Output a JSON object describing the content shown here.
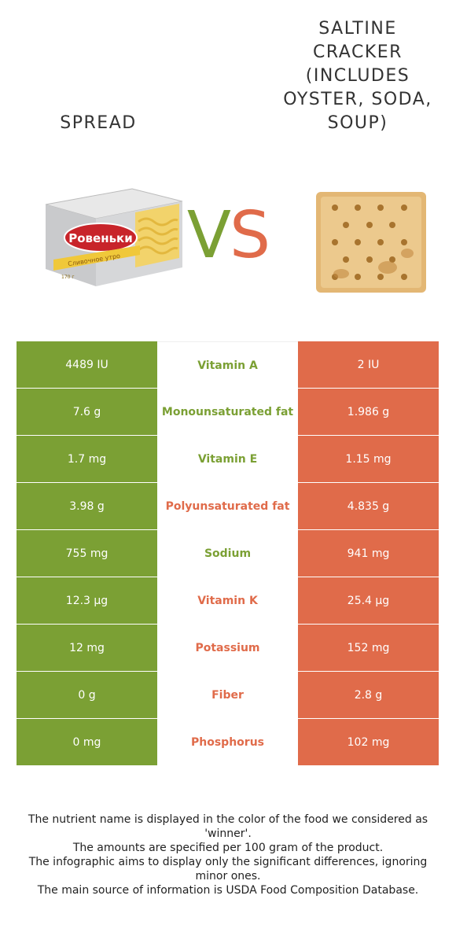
{
  "foods": {
    "left": {
      "name": "SPREAD",
      "color": "#7ba034",
      "image": "spread-package-image"
    },
    "right": {
      "name": "SALTINE CRACKER (INCLUDES OYSTER, SODA, SOUP)",
      "color": "#e06b4a",
      "image": "saltine-cracker-image"
    }
  },
  "vs": {
    "v": "V",
    "s": "S"
  },
  "package_text": {
    "brand": "Ровеньки",
    "product": "Сливочное утро",
    "weight": "170 г"
  },
  "rows": [
    {
      "left": "4489 IU",
      "nutrient": "Vitamin A",
      "right": "2 IU",
      "winner": "left"
    },
    {
      "left": "7.6 g",
      "nutrient": "Monounsaturated fat",
      "right": "1.986 g",
      "winner": "left"
    },
    {
      "left": "1.7 mg",
      "nutrient": "Vitamin E",
      "right": "1.15 mg",
      "winner": "left"
    },
    {
      "left": "3.98 g",
      "nutrient": "Polyunsaturated fat",
      "right": "4.835 g",
      "winner": "right"
    },
    {
      "left": "755 mg",
      "nutrient": "Sodium",
      "right": "941 mg",
      "winner": "left"
    },
    {
      "left": "12.3 µg",
      "nutrient": "Vitamin K",
      "right": "25.4 µg",
      "winner": "right"
    },
    {
      "left": "12 mg",
      "nutrient": "Potassium",
      "right": "152 mg",
      "winner": "right"
    },
    {
      "left": "0 g",
      "nutrient": "Fiber",
      "right": "2.8 g",
      "winner": "right"
    },
    {
      "left": "0 mg",
      "nutrient": "Phosphorus",
      "right": "102 mg",
      "winner": "right"
    }
  ],
  "footer": [
    "The nutrient name is displayed in the color of the food we considered as 'winner'.",
    "The amounts are specified per 100 gram of the product.",
    "The infographic aims to display only the significant differences, ignoring minor ones.",
    "The main source of information is USDA Food Composition Database."
  ]
}
